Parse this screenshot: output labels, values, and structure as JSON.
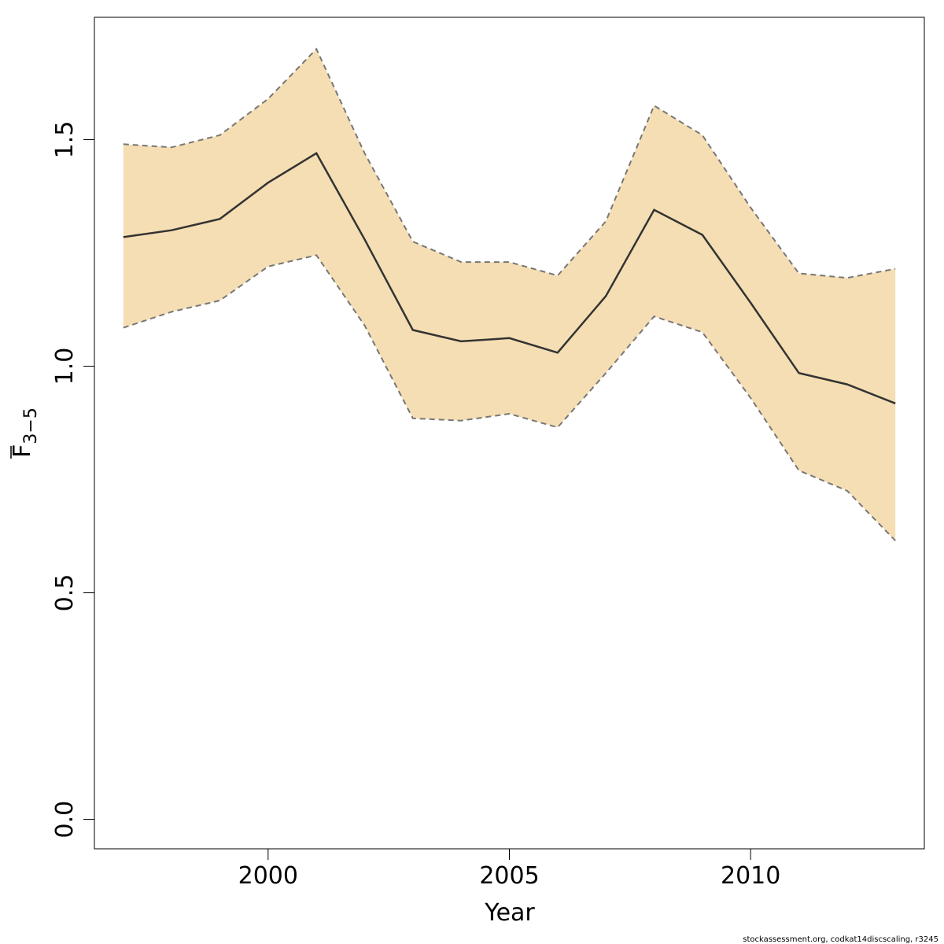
{
  "chart_data": {
    "type": "line",
    "xlabel": "Year",
    "ylabel_main": "F",
    "ylabel_sub": "3−5",
    "xlim": [
      1996.4,
      2013.6
    ],
    "ylim": [
      -0.065,
      1.77
    ],
    "xticks": [
      2000,
      2005,
      2010
    ],
    "xtick_labels": [
      "2000",
      "2005",
      "2010"
    ],
    "yticks": [
      0.0,
      0.5,
      1.0,
      1.5
    ],
    "ytick_labels": [
      "0.0",
      "0.5",
      "1.0",
      "1.5"
    ],
    "grid": false,
    "x": [
      1997,
      1998,
      1999,
      2000,
      2001,
      2002,
      2003,
      2004,
      2005,
      2006,
      2007,
      2008,
      2009,
      2010,
      2011,
      2012,
      2013
    ],
    "series": [
      {
        "role": "estimate",
        "values": [
          1.285,
          1.3,
          1.325,
          1.405,
          1.47,
          1.28,
          1.08,
          1.055,
          1.062,
          1.03,
          1.155,
          1.345,
          1.29,
          1.14,
          0.985,
          0.96,
          0.918
        ]
      },
      {
        "role": "upper",
        "values": [
          1.49,
          1.483,
          1.51,
          1.59,
          1.7,
          1.47,
          1.275,
          1.23,
          1.23,
          1.2,
          1.32,
          1.575,
          1.51,
          1.35,
          1.205,
          1.195,
          1.215
        ]
      },
      {
        "role": "lower",
        "values": [
          1.085,
          1.12,
          1.145,
          1.22,
          1.245,
          1.09,
          0.885,
          0.88,
          0.895,
          0.865,
          0.985,
          1.11,
          1.075,
          0.93,
          0.77,
          0.725,
          0.615
        ]
      }
    ],
    "colors": {
      "band": "#f5deb3",
      "line": "#333333",
      "bound": "#777777"
    }
  },
  "footer": {
    "caption": "stockassessment.org, codkat14discscaling, r3245"
  }
}
